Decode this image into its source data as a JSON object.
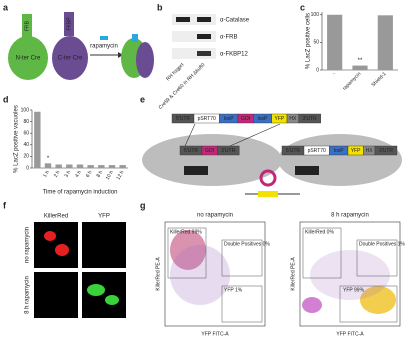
{
  "a": {
    "label": "a",
    "frb": "FRB",
    "fkbp": "FKBP",
    "n_ter": "N-ter Cre",
    "c_ter": "C-ter Cre",
    "rapamycin": "rapamycin"
  },
  "b": {
    "label": "b",
    "antibodies": [
      "α-Catalase",
      "α-FRB",
      "α-FKBP12"
    ],
    "lanes": [
      "RH hxgprt",
      "Cre59 & Cre60 in RH Δku80"
    ]
  },
  "c": {
    "label": "c",
    "type": "bar",
    "y_label": "% LacZ positive cells",
    "categories": [
      "-",
      "rapamycin",
      "Shield-1"
    ],
    "values": [
      100,
      8,
      99
    ],
    "annotation": "**",
    "ylim": [
      0,
      105
    ],
    "yticks": [
      0,
      50,
      100
    ],
    "color": "#999999"
  },
  "d": {
    "label": "d",
    "type": "bar",
    "y_label": "% LacZ positive vacuoles",
    "x_label": "Time of rapamycin induction",
    "categories": [
      null,
      "1 h",
      "2 h",
      "3 h",
      "4 h",
      "6 h",
      "8 h",
      "10 h",
      "12 h"
    ],
    "values": [
      97,
      8,
      6,
      6,
      6,
      5,
      5,
      5,
      5
    ],
    "annotation": "*",
    "ylim": [
      0,
      100
    ],
    "yticks": [
      0,
      20,
      40,
      60,
      80,
      100
    ],
    "color": "#999999"
  },
  "e": {
    "label": "e",
    "top_construct": [
      "5'UTR",
      "pSRT70",
      "loxP",
      "GOI",
      "loxP",
      "YFP",
      "HX",
      "3'UTR"
    ],
    "left_construct": [
      "5'UTR",
      "GOI",
      "3'UTR"
    ],
    "left_dicre": "DiCre",
    "right_construct": [
      "5'UTR",
      "pSRT70",
      "loxP",
      "YFP",
      "HX",
      "3'UTR"
    ],
    "right_dicre": "DiCre"
  },
  "f": {
    "label": "f",
    "columns": [
      "KillerRed",
      "YFP"
    ],
    "rows": [
      "no rapamycin",
      "8 h rapamycin"
    ]
  },
  "g": {
    "label": "g",
    "y_axis": "KillerRed PE-A",
    "x_axis": "YFP FITC-A",
    "plots": [
      {
        "title": "no rapamycin",
        "gates": [
          "KillerRed 99%",
          "Double Positives 0%",
          "YFP 1%"
        ]
      },
      {
        "title": "8 h rapamycin",
        "gates": [
          "KillerRed 0%",
          "Double Positives 1%",
          "YFP 99%"
        ]
      }
    ]
  }
}
